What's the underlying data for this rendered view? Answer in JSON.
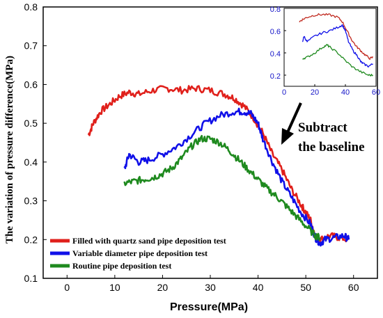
{
  "chart_data": [
    {
      "type": "line",
      "xlabel": "Pressure(MPa)",
      "ylabel": "The variation of pressure difference(MPa)",
      "xlim": [
        -5,
        65
      ],
      "ylim": [
        0.1,
        0.8
      ],
      "xticks": [
        0,
        10,
        20,
        30,
        40,
        50,
        60
      ],
      "yticks": [
        0.1,
        0.2,
        0.3,
        0.4,
        0.5,
        0.6,
        0.7,
        0.8
      ],
      "xtick_labels": [
        "0",
        "10",
        "20",
        "30",
        "40",
        "50",
        "60"
      ],
      "ytick_labels": [
        "0.1",
        "0.2",
        "0.3",
        "0.4",
        "0.5",
        "0.6",
        "0.7",
        "0.8"
      ],
      "grid": false,
      "legend_position": "bottom-left",
      "annotation": {
        "line1": "Subtract",
        "line2": "the baseline"
      },
      "series": [
        {
          "name": "Filled with quartz sand pipe deposition test",
          "color": "#e0201b",
          "x": [
            4.5,
            5.5,
            7,
            9,
            11,
            13,
            15,
            18,
            21,
            24,
            27,
            30,
            33,
            35,
            37,
            39,
            41,
            43,
            45,
            47,
            49,
            50,
            51,
            52,
            53,
            55,
            57,
            59
          ],
          "y": [
            0.47,
            0.5,
            0.53,
            0.55,
            0.57,
            0.58,
            0.575,
            0.585,
            0.59,
            0.585,
            0.59,
            0.585,
            0.575,
            0.565,
            0.545,
            0.515,
            0.475,
            0.42,
            0.38,
            0.33,
            0.29,
            0.27,
            0.25,
            0.21,
            0.2,
            0.21,
            0.205,
            0.2
          ]
        },
        {
          "name": "Variable diameter pipe deposition test",
          "color": "#1010e8",
          "x": [
            12,
            13,
            15,
            17,
            20,
            23,
            26,
            29,
            32,
            35,
            37,
            38.5,
            40,
            41,
            43,
            45,
            47,
            49,
            51,
            52,
            53,
            54,
            56,
            58,
            59
          ],
          "y": [
            0.38,
            0.42,
            0.4,
            0.405,
            0.42,
            0.44,
            0.47,
            0.5,
            0.52,
            0.53,
            0.53,
            0.525,
            0.5,
            0.46,
            0.4,
            0.35,
            0.31,
            0.27,
            0.24,
            0.205,
            0.19,
            0.2,
            0.205,
            0.21,
            0.2
          ]
        },
        {
          "name": "Routine pipe deposition test",
          "color": "#1f8a1f",
          "x": [
            12,
            14,
            16,
            18,
            20,
            22,
            24,
            26,
            28,
            30,
            32,
            34,
            36,
            38,
            40,
            42,
            44,
            46,
            48,
            50,
            52,
            53
          ],
          "y": [
            0.345,
            0.35,
            0.355,
            0.36,
            0.37,
            0.385,
            0.41,
            0.44,
            0.46,
            0.46,
            0.45,
            0.43,
            0.405,
            0.38,
            0.355,
            0.33,
            0.31,
            0.285,
            0.26,
            0.235,
            0.21,
            0.205
          ]
        }
      ]
    },
    {
      "type": "line",
      "xlim": [
        0,
        60
      ],
      "ylim": [
        0.1,
        0.8
      ],
      "xticks": [
        0,
        20,
        40,
        60
      ],
      "yticks": [
        0.2,
        0.4,
        0.6,
        0.8
      ],
      "xtick_labels": [
        "0",
        "20",
        "40",
        "60"
      ],
      "ytick_labels": [
        "0.2",
        "0.4",
        "0.6",
        "0.8"
      ],
      "tick_color": "#1414c8",
      "grid": false,
      "series": [
        {
          "color": "#c0281e",
          "x": [
            10,
            12,
            15,
            20,
            25,
            30,
            35,
            38,
            41,
            44,
            47,
            50,
            53,
            56,
            58
          ],
          "y": [
            0.68,
            0.7,
            0.72,
            0.74,
            0.745,
            0.74,
            0.72,
            0.68,
            0.6,
            0.52,
            0.46,
            0.42,
            0.38,
            0.35,
            0.36
          ]
        },
        {
          "color": "#1010e8",
          "x": [
            12,
            13,
            15,
            20,
            25,
            30,
            35,
            38,
            40,
            42,
            45,
            48,
            50,
            52,
            55,
            58
          ],
          "y": [
            0.5,
            0.55,
            0.5,
            0.55,
            0.58,
            0.6,
            0.63,
            0.65,
            0.6,
            0.5,
            0.42,
            0.37,
            0.32,
            0.3,
            0.28,
            0.3
          ]
        },
        {
          "color": "#1f8a1f",
          "x": [
            12,
            15,
            20,
            25,
            28,
            30,
            35,
            40,
            45,
            50,
            55,
            58
          ],
          "y": [
            0.35,
            0.36,
            0.4,
            0.45,
            0.47,
            0.45,
            0.4,
            0.33,
            0.27,
            0.23,
            0.2,
            0.2
          ]
        }
      ]
    }
  ]
}
